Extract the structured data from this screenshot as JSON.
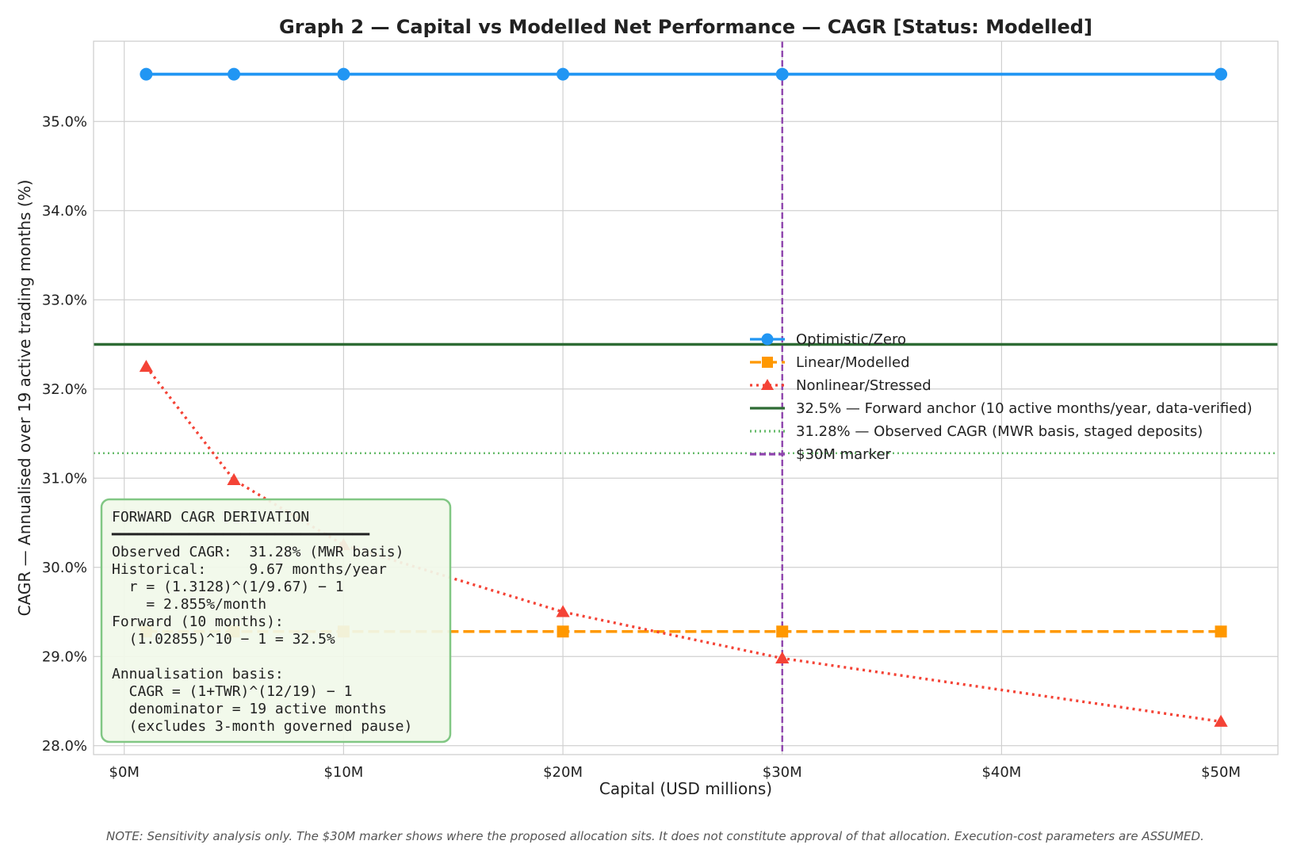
{
  "chart_data": {
    "type": "line",
    "title": "Graph 2 — Capital vs Modelled Net Performance — CAGR  [Status: Modelled]",
    "xlabel": "Capital (USD millions)",
    "ylabel": "CAGR — Annualised over 19 active trading months (%)",
    "xlim": [
      -1.4,
      52.6
    ],
    "ylim": [
      27.9,
      35.9
    ],
    "x_ticks": [
      0,
      10,
      20,
      30,
      40,
      50
    ],
    "x_tick_labels": [
      "$0M",
      "$10M",
      "$20M",
      "$30M",
      "$40M",
      "$50M"
    ],
    "y_ticks": [
      28,
      29,
      30,
      31,
      32,
      33,
      34,
      35
    ],
    "y_tick_labels": [
      "28.0%",
      "29.0%",
      "30.0%",
      "31.0%",
      "32.0%",
      "33.0%",
      "34.0%",
      "35.0%"
    ],
    "grid": true,
    "legend_position": "center-right",
    "series": [
      {
        "name": "Optimistic/Zero",
        "color": "#2196F3",
        "style": "solid",
        "marker": "circle",
        "x": [
          1,
          5,
          10,
          20,
          30,
          50
        ],
        "y": [
          35.53,
          35.53,
          35.53,
          35.53,
          35.53,
          35.53
        ]
      },
      {
        "name": "Linear/Modelled",
        "color": "#FF9800",
        "style": "dashed",
        "marker": "square",
        "x": [
          1,
          5,
          10,
          20,
          30,
          50
        ],
        "y": [
          29.28,
          29.28,
          29.28,
          29.28,
          29.28,
          29.28
        ]
      },
      {
        "name": "Nonlinear/Stressed",
        "color": "#F44336",
        "style": "dotted",
        "marker": "triangle",
        "x": [
          1,
          5,
          10,
          20,
          30,
          50
        ],
        "y": [
          32.25,
          30.98,
          30.25,
          29.5,
          28.98,
          28.27
        ]
      }
    ],
    "reference_lines": [
      {
        "orientation": "horizontal",
        "value": 32.5,
        "color": "#2E6B34",
        "style": "solid",
        "label": "32.5% — Forward anchor (10 active months/year, data-verified)"
      },
      {
        "orientation": "horizontal",
        "value": 31.28,
        "color": "#66BB6A",
        "style": "dotted",
        "label": "31.28% — Observed CAGR (MWR basis, staged deposits)"
      },
      {
        "orientation": "vertical",
        "value": 30,
        "color": "#8E44AD",
        "style": "dashed",
        "label": "$30M marker"
      }
    ]
  },
  "annotation_box": {
    "lines": [
      "FORWARD CAGR DERIVATION",
      "━━━━━━━━━━━━━━━━━━━━━━━━━━━━━━",
      "Observed CAGR:  31.28% (MWR basis)",
      "Historical:     9.67 months/year",
      "  r = (1.3128)^(1/9.67) − 1",
      "    = 2.855%/month",
      "Forward (10 months):",
      "  (1.02855)^10 − 1 = 32.5%",
      "",
      "Annualisation basis:",
      "  CAGR = (1+TWR)^(12/19) − 1",
      "  denominator = 19 active months",
      "  (excludes 3-month governed pause)"
    ],
    "border_color": "#81C784",
    "background_color": "#F1F8E9"
  },
  "note": "NOTE: Sensitivity analysis only. The $30M marker shows where the proposed allocation sits. It does not constitute approval of that allocation. Execution-cost parameters are ASSUMED."
}
